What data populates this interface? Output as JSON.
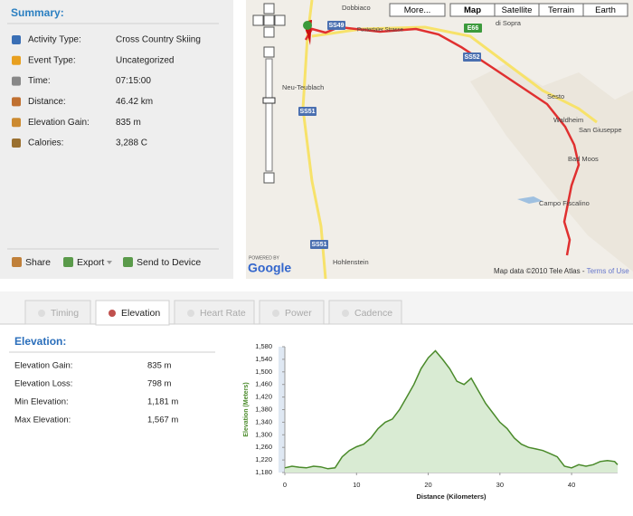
{
  "summary": {
    "title": "Summary:",
    "rows": [
      {
        "label": "Activity Type:",
        "value": "Cross Country Skiing"
      },
      {
        "label": "Event Type:",
        "value": "Uncategorized"
      },
      {
        "label": "Time:",
        "value": "07:15:00"
      },
      {
        "label": "Distance:",
        "value": "46.42 km"
      },
      {
        "label": "Elevation Gain:",
        "value": "835 m"
      },
      {
        "label": "Calories:",
        "value": "3,288 C"
      }
    ],
    "actions": [
      "Share",
      "Export",
      "Send to Device"
    ]
  },
  "map": {
    "buttons": [
      "More...",
      "Map",
      "Satellite",
      "Terrain",
      "Earth"
    ],
    "places": [
      "Dobbiaco",
      "di Sopra",
      "Pustertaler Strasse",
      "Neu-Teublach",
      "Sesto",
      "Waldheim",
      "San Giuseppe",
      "Bad Moos",
      "Campo Fiscalino",
      "Hohlenstein"
    ],
    "roads": [
      "SS49",
      "E66",
      "SS52",
      "SS51",
      "SS51"
    ],
    "powered_by": "POWERED BY",
    "logo": "Google",
    "copyright": "Map data ©2010 Tele Atlas - ",
    "terms": "Terms of Use"
  },
  "tabs": [
    "Timing",
    "Elevation",
    "Heart Rate",
    "Power",
    "Cadence"
  ],
  "active_tab": 1,
  "elevation": {
    "title": "Elevation:",
    "rows": [
      {
        "label": "Elevation Gain:",
        "value": "835 m"
      },
      {
        "label": "Elevation Loss:",
        "value": "798 m"
      },
      {
        "label": "Min Elevation:",
        "value": "1,181 m"
      },
      {
        "label": "Max Elevation:",
        "value": "1,567 m"
      }
    ]
  },
  "chart_data": {
    "type": "area",
    "x_label": "Distance (Kilometers)",
    "y_label": "Elevation (Meters)",
    "color": "#4a8a2a",
    "fill": "#d9ebd3",
    "x": [
      0,
      1,
      2,
      3,
      4,
      5,
      6,
      7,
      8,
      9,
      10,
      11,
      12,
      13,
      14,
      15,
      16,
      17,
      18,
      19,
      20,
      21,
      22,
      23,
      24,
      25,
      26,
      27,
      28,
      29,
      30,
      31,
      32,
      33,
      34,
      35,
      36,
      37,
      38,
      39,
      40,
      41,
      42,
      43,
      44,
      45,
      46,
      46.42
    ],
    "values": [
      1195,
      1200,
      1197,
      1195,
      1200,
      1198,
      1192,
      1195,
      1230,
      1250,
      1262,
      1270,
      1290,
      1320,
      1340,
      1350,
      1380,
      1420,
      1460,
      1510,
      1545,
      1567,
      1540,
      1510,
      1470,
      1460,
      1480,
      1440,
      1400,
      1370,
      1340,
      1320,
      1290,
      1270,
      1260,
      1255,
      1250,
      1240,
      1230,
      1200,
      1195,
      1205,
      1200,
      1205,
      1215,
      1218,
      1215,
      1205
    ],
    "xlim": [
      0,
      46.42
    ],
    "ylim": [
      1180,
      1580
    ],
    "xticks": [
      0,
      10,
      20,
      30,
      40
    ],
    "yticks": [
      {
        "value": 1180,
        "label": "1,180"
      },
      {
        "value": 1220,
        "label": "1,220"
      },
      {
        "value": 1260,
        "label": "1,260"
      },
      {
        "value": 1300,
        "label": "1,300"
      },
      {
        "value": 1340,
        "label": "1,340"
      },
      {
        "value": 1380,
        "label": "1,380"
      },
      {
        "value": 1420,
        "label": "1,420"
      },
      {
        "value": 1460,
        "label": "1,460"
      },
      {
        "value": 1500,
        "label": "1,500"
      },
      {
        "value": 1540,
        "label": "1,540"
      },
      {
        "value": 1580,
        "label": "1,580"
      }
    ]
  }
}
